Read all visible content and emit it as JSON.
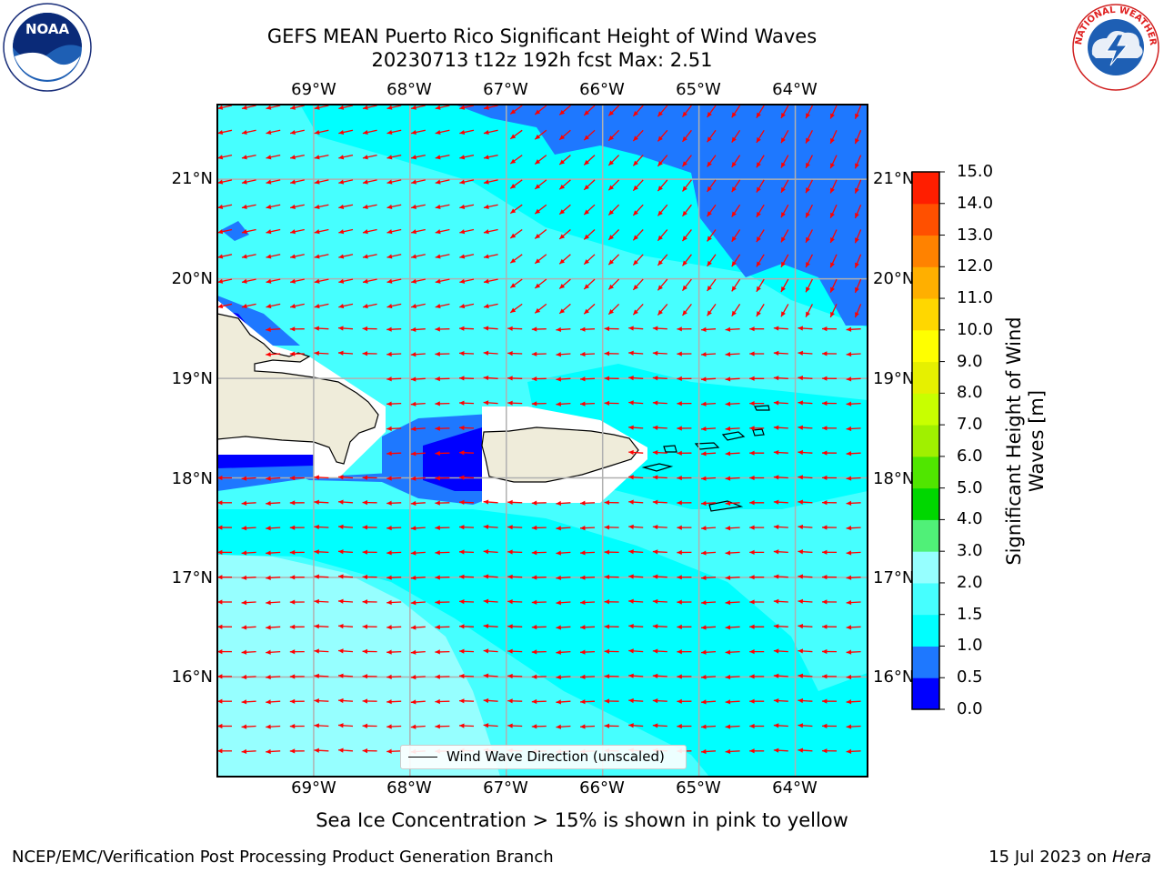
{
  "header": {
    "title_line1": "GEFS MEAN Puerto Rico Significant Height of Wind Waves",
    "title_line2": "20230713 t12z 192h fcst   Max: 2.51"
  },
  "map": {
    "lon_labels": [
      "69°W",
      "68°W",
      "67°W",
      "66°W",
      "65°W",
      "64°W"
    ],
    "lat_labels": [
      "21°N",
      "20°N",
      "19°N",
      "18°N",
      "17°N",
      "16°N"
    ],
    "lon_range": [
      -70.0,
      -63.25
    ],
    "lat_range": [
      15.0,
      21.75
    ],
    "colors": {
      "h0_05": "#0000ff",
      "h05_1": "#1e78ff",
      "h1_15": "#00ffff",
      "h15_2": "#46ffff",
      "h2_3": "#96ffff",
      "land": "#efecda",
      "arrow": "#ff0000",
      "grid": "#b0b0b0"
    }
  },
  "legend": {
    "label": "Wind Wave Direction (unscaled)"
  },
  "colorbar": {
    "ticks": [
      "0.0",
      "0.5",
      "1.0",
      "1.5",
      "2.0",
      "3.0",
      "4.0",
      "5.0",
      "6.0",
      "7.0",
      "8.0",
      "9.0",
      "10.0",
      "11.0",
      "12.0",
      "13.0",
      "14.0",
      "15.0"
    ],
    "colors": [
      "#0000ff",
      "#1e78ff",
      "#00ffff",
      "#46ffff",
      "#96ffff",
      "#50f078",
      "#00d700",
      "#50e600",
      "#a0f000",
      "#c8ff00",
      "#e6f000",
      "#ffff00",
      "#ffd700",
      "#ffaf00",
      "#ff8200",
      "#ff5000",
      "#ff1e00"
    ],
    "label": "Significant Height of Wind Waves [m]"
  },
  "notes": {
    "sea_ice": "Sea Ice Concentration > 15% is shown in pink to yellow"
  },
  "footer": {
    "left": "NCEP/EMC/Verification Post Processing Product Generation Branch",
    "right_prefix": "15 Jul 2023 on ",
    "right_host": "Hera"
  },
  "logos": {
    "noaa": "NOAA",
    "nws": "NATIONAL WEATHER SERVICE"
  }
}
